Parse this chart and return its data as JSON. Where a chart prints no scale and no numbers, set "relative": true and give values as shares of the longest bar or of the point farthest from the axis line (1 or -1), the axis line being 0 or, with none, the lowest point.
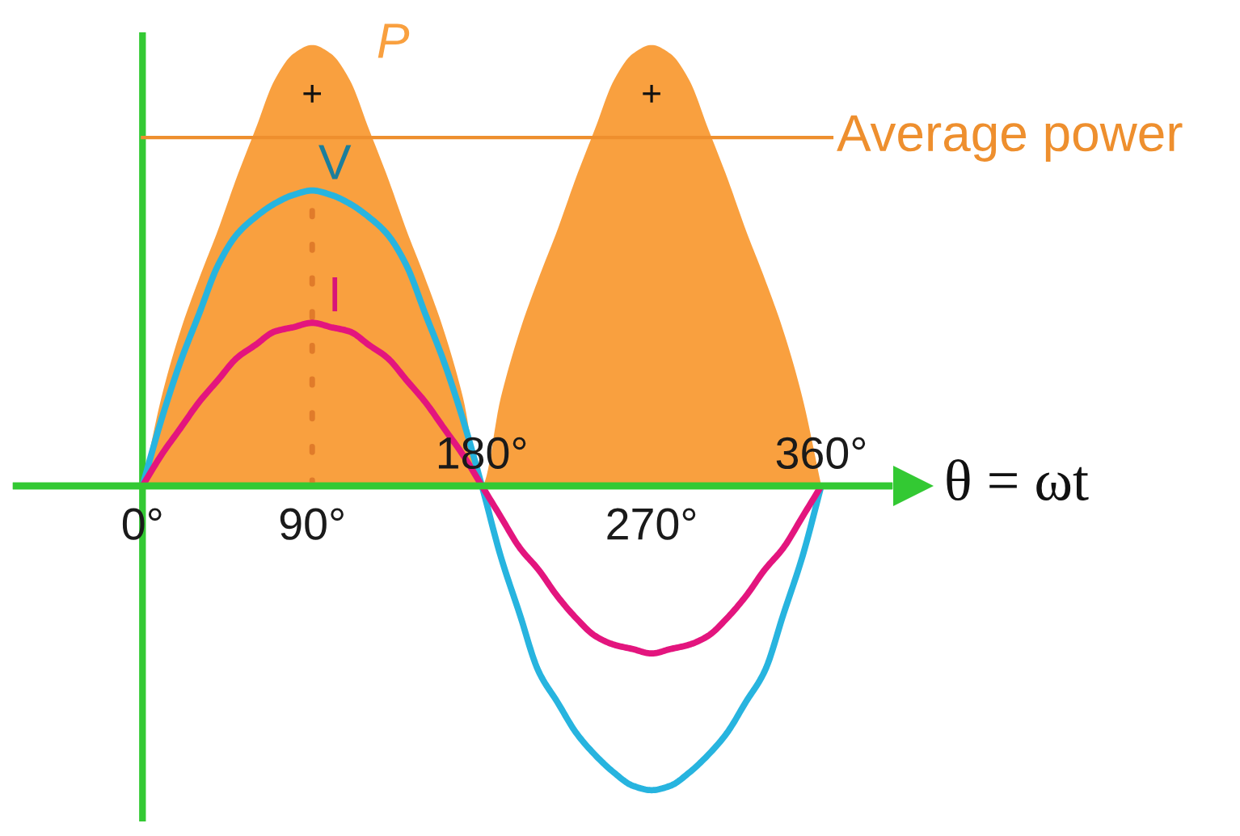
{
  "chart_data": {
    "type": "line",
    "relative": true,
    "xlabel": "θ = ωt",
    "x": [
      0,
      10,
      20,
      30,
      40,
      50,
      60,
      70,
      80,
      90,
      100,
      110,
      120,
      130,
      140,
      150,
      160,
      170,
      180,
      190,
      200,
      210,
      220,
      230,
      240,
      250,
      260,
      270,
      280,
      290,
      300,
      310,
      320,
      330,
      340,
      350,
      360
    ],
    "xlim": [
      -67,
      396
    ],
    "xticks": [
      {
        "value": 0,
        "label": "0°"
      },
      {
        "value": 90,
        "label": "90°"
      },
      {
        "value": 270,
        "label": "270°"
      }
    ],
    "x2lim": [
      -67,
      396
    ],
    "x2ticks": [
      {
        "value": 180,
        "label": "180°"
      },
      {
        "value": 360,
        "label": "360°"
      }
    ],
    "series": [
      {
        "name": "P",
        "type": "area",
        "color": "#f9a03f",
        "values": [
          0,
          0.2,
          0.35,
          0.47,
          0.58,
          0.7,
          0.81,
          0.92,
          0.98,
          1.0,
          0.98,
          0.92,
          0.81,
          0.7,
          0.58,
          0.47,
          0.35,
          0.2,
          0,
          0.2,
          0.35,
          0.47,
          0.58,
          0.7,
          0.81,
          0.92,
          0.98,
          1.0,
          0.98,
          0.92,
          0.81,
          0.7,
          0.58,
          0.47,
          0.35,
          0.2,
          0
        ]
      },
      {
        "name": "V",
        "color": "#27b4df",
        "values": [
          0,
          0.15,
          0.28,
          0.39,
          0.5,
          0.57,
          0.61,
          0.64,
          0.66,
          0.67,
          0.66,
          0.64,
          0.61,
          0.57,
          0.5,
          0.39,
          0.28,
          0.15,
          0,
          -0.16,
          -0.29,
          -0.42,
          -0.49,
          -0.56,
          -0.61,
          -0.65,
          -0.68,
          -0.69,
          -0.68,
          -0.65,
          -0.61,
          -0.56,
          -0.49,
          -0.42,
          -0.29,
          -0.16,
          0
        ]
      },
      {
        "name": "I",
        "color": "#e3157e",
        "values": [
          0,
          0.07,
          0.13,
          0.19,
          0.24,
          0.29,
          0.32,
          0.35,
          0.36,
          0.37,
          0.36,
          0.35,
          0.32,
          0.29,
          0.24,
          0.19,
          0.13,
          0.07,
          0,
          -0.07,
          -0.14,
          -0.19,
          -0.25,
          -0.3,
          -0.34,
          -0.36,
          -0.37,
          -0.38,
          -0.37,
          -0.36,
          -0.34,
          -0.3,
          -0.25,
          -0.19,
          -0.14,
          -0.07,
          0
        ]
      }
    ],
    "ref_lines": [
      {
        "axis": "y",
        "value": 0.79,
        "label": "Average power",
        "color": "#ee8f2e"
      },
      {
        "axis": "x",
        "value": 90,
        "color": "#e07b2a",
        "line_style": "dotted"
      },
      {
        "axis": "x",
        "value": 0,
        "color": "#33c933"
      }
    ],
    "annotations": [
      "+",
      "+"
    ]
  }
}
